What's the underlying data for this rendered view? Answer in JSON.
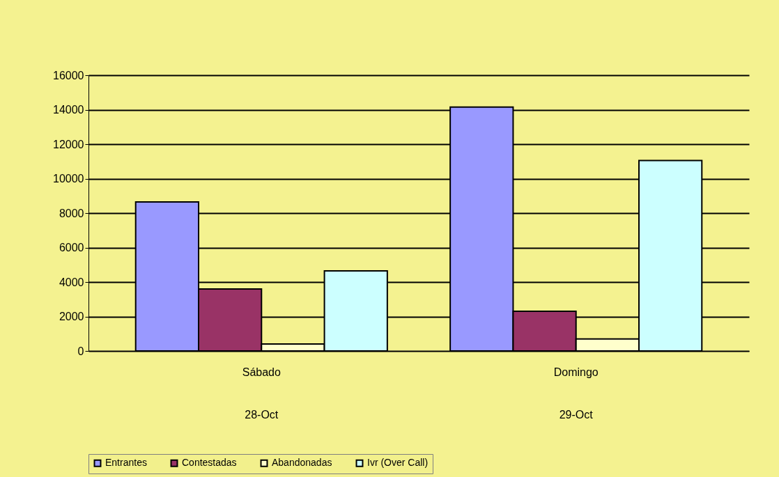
{
  "chart_data": {
    "type": "bar",
    "categories": [
      "Sábado",
      "Domingo"
    ],
    "series": [
      {
        "name": "Entrantes",
        "color": "#9999ff",
        "values": [
          8650,
          14150
        ]
      },
      {
        "name": "Contestadas",
        "color": "#993366",
        "values": [
          3600,
          2300
        ]
      },
      {
        "name": "Abandonadas",
        "color": "#ffffcc",
        "values": [
          400,
          700
        ]
      },
      {
        "name": "Ivr (Over Call)",
        "color": "#ccffff",
        "values": [
          4650,
          11050
        ]
      }
    ],
    "annotations": [
      "28-Oct",
      "29-Oct"
    ],
    "ylim": [
      0,
      16000
    ],
    "yticks": [
      0,
      2000,
      4000,
      6000,
      8000,
      10000,
      12000,
      14000,
      16000
    ],
    "grid": "y",
    "legend": "bottom"
  }
}
